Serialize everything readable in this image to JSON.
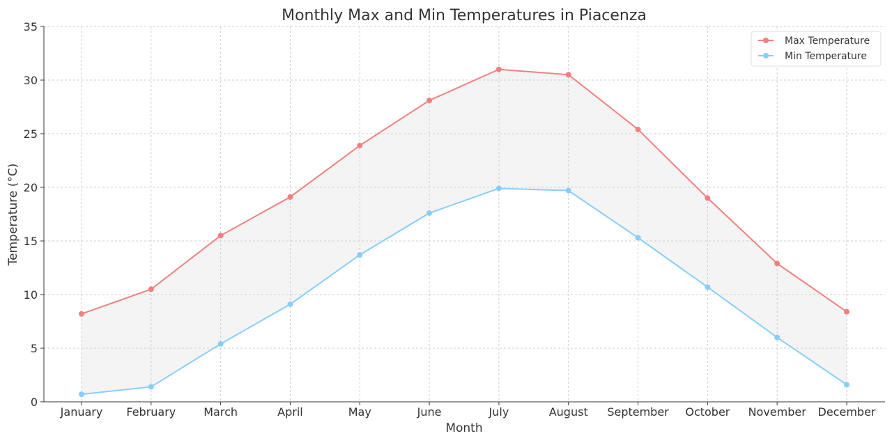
{
  "chart_data": {
    "type": "line",
    "title": "Monthly Max and Min Temperatures in Piacenza",
    "xlabel": "Month",
    "ylabel": "Temperature (°C)",
    "categories": [
      "January",
      "February",
      "March",
      "April",
      "May",
      "June",
      "July",
      "August",
      "September",
      "October",
      "November",
      "December"
    ],
    "series": [
      {
        "name": "Max Temperature",
        "color": "#f08080",
        "values": [
          8.2,
          10.5,
          15.5,
          19.1,
          23.9,
          28.1,
          31.0,
          30.5,
          25.4,
          19.0,
          12.9,
          8.4
        ]
      },
      {
        "name": "Min Temperature",
        "color": "#87cefa",
        "values": [
          0.7,
          1.4,
          5.4,
          9.1,
          13.7,
          17.6,
          19.9,
          19.7,
          15.3,
          10.7,
          6.0,
          1.6
        ]
      }
    ],
    "fill_between": {
      "color": "#d3d3d3"
    },
    "ylim": [
      0,
      35
    ],
    "yticks": [
      0,
      5,
      10,
      15,
      20,
      25,
      30,
      35
    ],
    "grid": true,
    "legend": "top-right"
  }
}
